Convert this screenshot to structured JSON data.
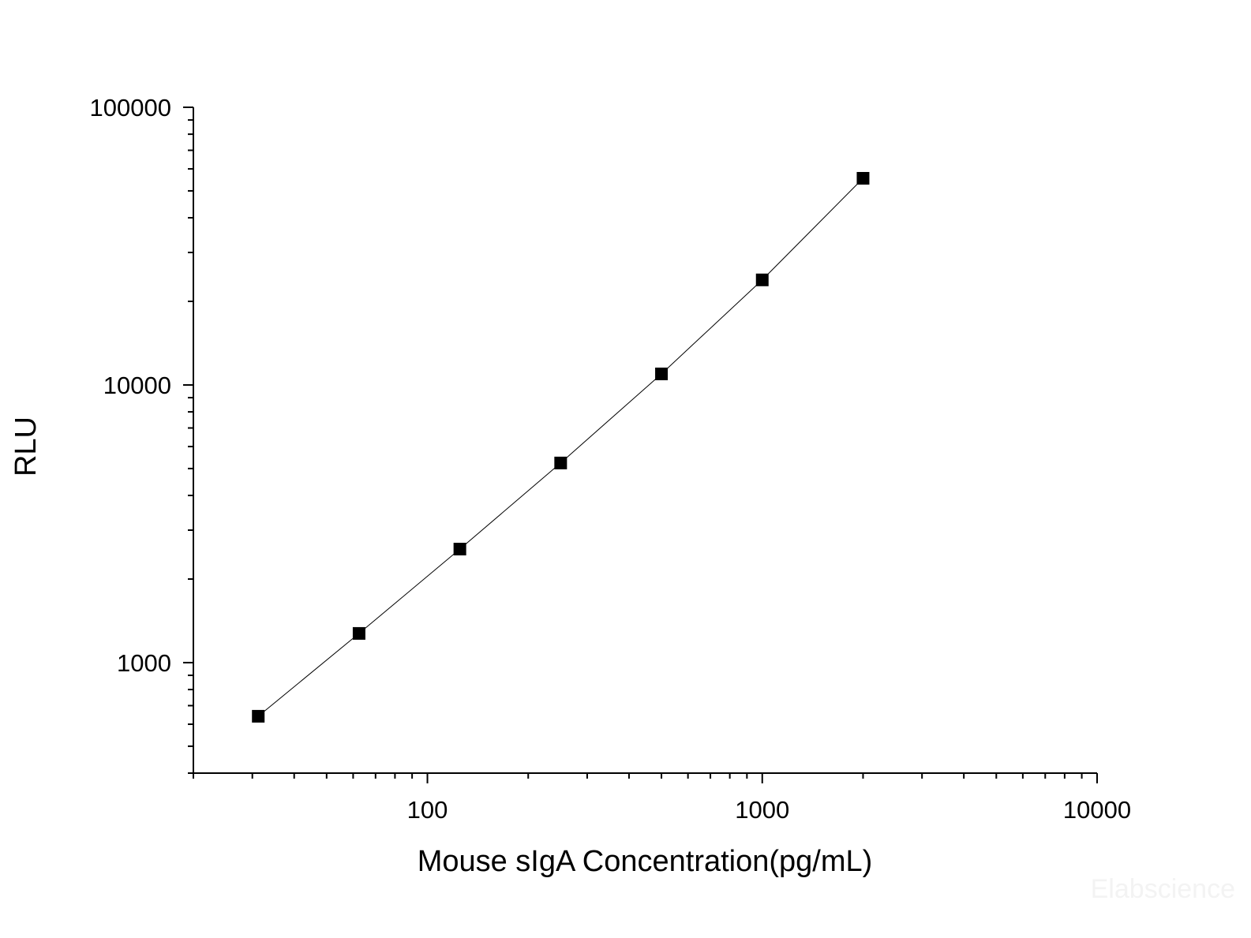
{
  "chart_data": {
    "type": "line",
    "x_label": "Mouse sIgA Concentration(pg/mL)",
    "y_label": "RLU",
    "x": [
      31.25,
      62.5,
      125,
      250,
      500,
      1000,
      2000
    ],
    "series": [
      {
        "color": "#000000",
        "values": [
          641,
          1274,
          2564,
          5236,
          10960,
          23900,
          55500
        ]
      }
    ],
    "xlim": [
      20,
      10000
    ],
    "ylim": [
      400,
      100000
    ],
    "xticks": [
      100,
      1000,
      10000
    ],
    "yticks": [
      1000,
      10000,
      100000
    ],
    "xscale": "log",
    "yscale": "log",
    "grid": false,
    "markers": "square",
    "watermark": "Elabscience"
  }
}
